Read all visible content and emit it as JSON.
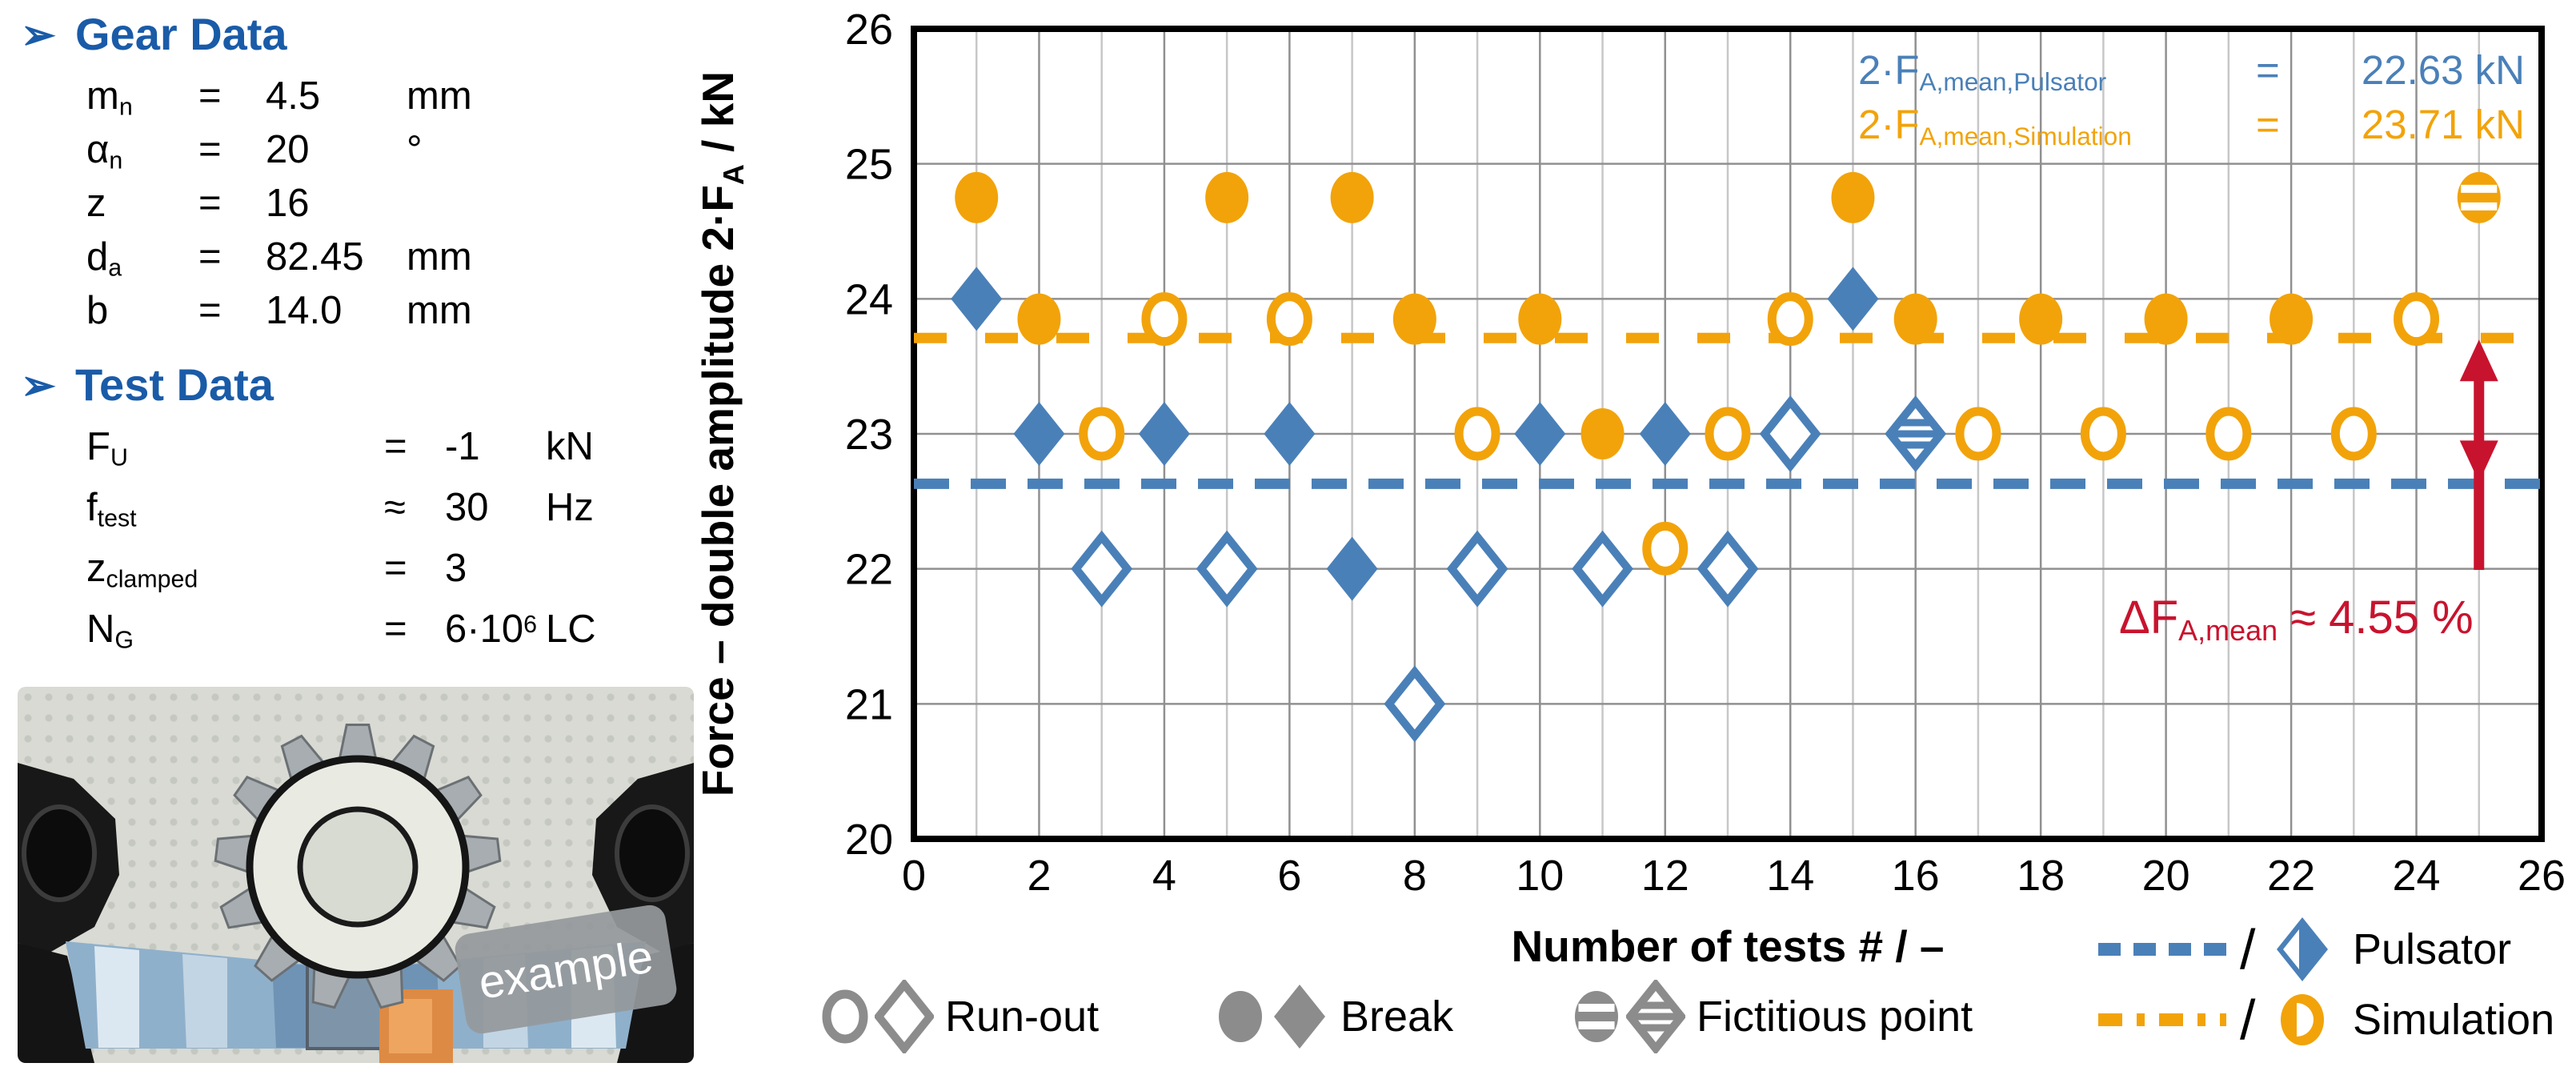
{
  "panel": {
    "gear": {
      "bullet": "➢",
      "heading": "Gear Data",
      "heading_color": "#1A5BA8",
      "rows": [
        {
          "sym": "m",
          "sub": "n",
          "rel": "=",
          "val": "4.5",
          "valsup": "",
          "unit": "mm"
        },
        {
          "sym": "α",
          "sub": "n",
          "rel": "=",
          "val": "20",
          "valsup": "",
          "unit": "°"
        },
        {
          "sym": "z",
          "sub": "",
          "rel": "=",
          "val": "16",
          "valsup": "",
          "unit": ""
        },
        {
          "sym": "d",
          "sub": "a",
          "rel": "=",
          "val": "82.45",
          "valsup": "",
          "unit": "mm"
        },
        {
          "sym": "b",
          "sub": "",
          "rel": "=",
          "val": "14.0",
          "valsup": "",
          "unit": "mm"
        }
      ]
    },
    "test": {
      "bullet": "➢",
      "heading": "Test Data",
      "heading_color": "#1A5BA8",
      "rows": [
        {
          "sym": "F",
          "sub": "U",
          "rel": "=",
          "val": "-1",
          "valsup": "",
          "unit": "kN"
        },
        {
          "sym": "f",
          "sub": "test",
          "rel": "≈",
          "val": "30",
          "valsup": "",
          "unit": "Hz"
        },
        {
          "sym": "z",
          "sub": "clamped",
          "rel": "=",
          "val": "3",
          "valsup": "",
          "unit": ""
        },
        {
          "sym": "N",
          "sub": "G",
          "rel": "=",
          "val": "6·10",
          "valsup": "6",
          "unit": "LC"
        }
      ]
    },
    "photo_tag": "example"
  },
  "chart_data": {
    "type": "scatter",
    "xlabel": "Number of tests # / –",
    "ylabel_parts": {
      "pre": "Force – double amplitude 2·F",
      "sub": "A",
      "post": " / kN"
    },
    "xlim": [
      0,
      26
    ],
    "ylim": [
      20,
      26
    ],
    "xticks": [
      0,
      2,
      4,
      6,
      8,
      10,
      12,
      14,
      16,
      18,
      20,
      22,
      24,
      26
    ],
    "yticks": [
      20,
      21,
      22,
      23,
      24,
      25,
      26
    ],
    "grid": "on",
    "series": [
      {
        "name": "Pulsator",
        "marker": "diamond",
        "color": "#4A80B8",
        "mean": 22.63,
        "points": [
          {
            "x": 1,
            "y": 24,
            "state": "break"
          },
          {
            "x": 2,
            "y": 23,
            "state": "break"
          },
          {
            "x": 3,
            "y": 22,
            "state": "runout"
          },
          {
            "x": 4,
            "y": 23,
            "state": "break"
          },
          {
            "x": 5,
            "y": 22,
            "state": "runout"
          },
          {
            "x": 6,
            "y": 23,
            "state": "break"
          },
          {
            "x": 7,
            "y": 22,
            "state": "break"
          },
          {
            "x": 8,
            "y": 21,
            "state": "runout"
          },
          {
            "x": 9,
            "y": 22,
            "state": "runout"
          },
          {
            "x": 10,
            "y": 23,
            "state": "break"
          },
          {
            "x": 11,
            "y": 22,
            "state": "runout"
          },
          {
            "x": 12,
            "y": 23,
            "state": "break"
          },
          {
            "x": 13,
            "y": 22,
            "state": "runout"
          },
          {
            "x": 14,
            "y": 23,
            "state": "runout"
          },
          {
            "x": 15,
            "y": 24,
            "state": "break"
          },
          {
            "x": 16,
            "y": 23,
            "state": "fictitious"
          }
        ]
      },
      {
        "name": "Simulation",
        "marker": "circle",
        "color": "#F2A30A",
        "mean": 23.71,
        "points": [
          {
            "x": 1,
            "y": 24.75,
            "state": "break"
          },
          {
            "x": 2,
            "y": 23.85,
            "state": "break"
          },
          {
            "x": 3,
            "y": 23,
            "state": "runout"
          },
          {
            "x": 4,
            "y": 23.85,
            "state": "runout"
          },
          {
            "x": 5,
            "y": 24.75,
            "state": "break"
          },
          {
            "x": 6,
            "y": 23.85,
            "state": "runout"
          },
          {
            "x": 7,
            "y": 24.75,
            "state": "break"
          },
          {
            "x": 8,
            "y": 23.85,
            "state": "break"
          },
          {
            "x": 9,
            "y": 23,
            "state": "runout"
          },
          {
            "x": 10,
            "y": 23.85,
            "state": "break"
          },
          {
            "x": 11,
            "y": 23,
            "state": "break"
          },
          {
            "x": 12,
            "y": 22.15,
            "state": "runout"
          },
          {
            "x": 13,
            "y": 23,
            "state": "runout"
          },
          {
            "x": 14,
            "y": 23.85,
            "state": "runout"
          },
          {
            "x": 15,
            "y": 24.75,
            "state": "break"
          },
          {
            "x": 16,
            "y": 23.85,
            "state": "break"
          },
          {
            "x": 17,
            "y": 23,
            "state": "runout"
          },
          {
            "x": 18,
            "y": 23.85,
            "state": "break"
          },
          {
            "x": 19,
            "y": 23,
            "state": "runout"
          },
          {
            "x": 20,
            "y": 23.85,
            "state": "break"
          },
          {
            "x": 21,
            "y": 23,
            "state": "runout"
          },
          {
            "x": 22,
            "y": 23.85,
            "state": "break"
          },
          {
            "x": 23,
            "y": 23,
            "state": "runout"
          },
          {
            "x": 24,
            "y": 23.85,
            "state": "runout"
          },
          {
            "x": 25,
            "y": 24.75,
            "state": "fictitious"
          }
        ]
      }
    ],
    "annotations": {
      "pulsator_mean": {
        "prefix": "2·F",
        "sub": "A,mean,Pulsator",
        "eq": "=",
        "value": "22.63 kN"
      },
      "simulation_mean": {
        "prefix": "2·F",
        "sub": "A,mean,Simulation",
        "eq": "=",
        "value": "23.71 kN"
      },
      "delta": {
        "prefix": "ΔF",
        "sub": "A,mean",
        "rest": " ≈ 4.55 %",
        "color": "#C8132E",
        "arrow_x": 25,
        "arrow_from": 23.71,
        "arrow_to": 22.63
      }
    },
    "legend": {
      "marker_states": [
        {
          "label": "Run-out",
          "style": "hollow"
        },
        {
          "label": "Break",
          "style": "filled"
        },
        {
          "label": "Fictitious point",
          "style": "striped"
        }
      ],
      "marker_state_color": "#8C8C8C",
      "series_rows": [
        {
          "label": "Pulsator"
        },
        {
          "label": "Simulation"
        }
      ]
    },
    "colors": {
      "grid_major": "#909090",
      "grid_minor": "#c7c7c7",
      "frame": "#000000"
    }
  }
}
